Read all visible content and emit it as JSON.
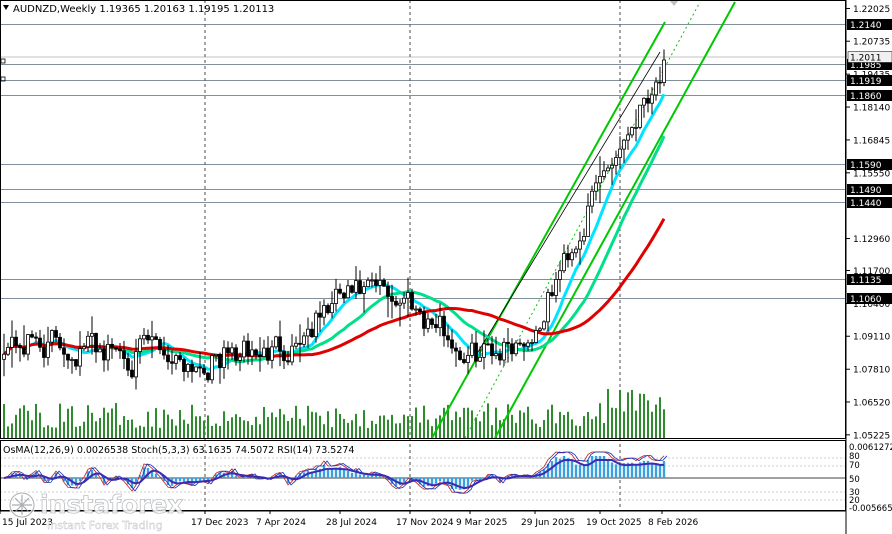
{
  "window": {
    "symbol_line": "AUDNZD,Weekly  1.19365 1.20163 1.19195 1.20113"
  },
  "colors": {
    "background": "#ffffff",
    "candles": "#000000",
    "ma_fast": "#00e5ff",
    "ma_mid": "#00e08a",
    "ma_slow": "#e00000",
    "channel": "#00c800",
    "volume": "#2e8b2e",
    "osma": "#3aa0e0",
    "stoch_main": "#1030c0",
    "stoch_signal": "#c02020",
    "rsi": "#3b2bb0",
    "price_tag_bg": "#000000",
    "price_tag_text": "#ffffff",
    "current_price_tag_bg": "#f0f0f0"
  },
  "levels": [
    {
      "label": "1.2140",
      "value": 1.214,
      "tag": true
    },
    {
      "label": "1.1985",
      "value": 1.1985,
      "tag": true
    },
    {
      "label": "1.1919",
      "value": 1.1919,
      "tag": true
    },
    {
      "label": "1.1860",
      "value": 1.186,
      "tag": true
    },
    {
      "label": "1.1590",
      "value": 1.159,
      "tag": true
    },
    {
      "label": "1.1490",
      "value": 1.149,
      "tag": true
    },
    {
      "label": "1.1440",
      "value": 1.144,
      "tag": true
    },
    {
      "label": "1.1135",
      "value": 1.1135,
      "tag": true
    },
    {
      "label": "1.1060",
      "value": 1.106,
      "tag": true
    }
  ],
  "current_price": {
    "label": "1.2011",
    "value": 1.20113
  },
  "price_axis": {
    "ticks": [
      "1.22025",
      "1.20735",
      "1.19435",
      "1.18140",
      "1.16845",
      "1.15550",
      "1.12960",
      "1.11700",
      "1.10400",
      "1.09110",
      "1.07810",
      "1.06520",
      "1.05225"
    ],
    "range": [
      1.051,
      1.2228
    ]
  },
  "date_axis": [
    "15 Jul 2023",
    "17 Dec 2023",
    "7 Apr 2024",
    "28 Jul 2024",
    "17 Nov 2024",
    "9 Mar 2025",
    "29 Jun 2025",
    "19 Oct 2025",
    "8 Feb 2026"
  ],
  "indicators": {
    "header": "OsMA(12,26,9) 0.0026538  Stoch(5,3,3) 63.1635 74.5072  RSI(14) 73.5274",
    "axis": [
      "0.0061272",
      "80",
      "70",
      "50",
      "30",
      "20",
      "0.00",
      "-0.0056655"
    ]
  },
  "watermark": {
    "brand": "instaforex",
    "tagline": "Instant Forex Trading"
  },
  "chart_data": {
    "type": "candlestick",
    "symbol": "AUDNZD",
    "timeframe": "Weekly",
    "ohlc_last": {
      "open": 1.19365,
      "high": 1.20163,
      "low": 1.19195,
      "close": 1.20113
    },
    "overlays": [
      "MA (cyan)",
      "MA (green)",
      "MA (red)",
      "ascending price channel (green)"
    ],
    "key_points": [
      {
        "date": "15 Jul 2023",
        "price": 1.09
      },
      {
        "date": "17 Dec 2023",
        "price": 1.083
      },
      {
        "date": "7 Apr 2024",
        "price": 1.084
      },
      {
        "date": "28 Jul 2024",
        "price": 1.105
      },
      {
        "date": "17 Nov 2024",
        "price": 1.107
      },
      {
        "date": "9 Mar 2025",
        "price": 1.083
      },
      {
        "date": "29 Jun 2025",
        "price": 1.094
      },
      {
        "date": "19 Oct 2025",
        "price": 1.152
      },
      {
        "date": "8 Feb 2026",
        "price": 1.19
      },
      {
        "date": "latest",
        "price": 1.2011
      }
    ],
    "oscillators": {
      "osma": 0.0026538,
      "stoch_main": 63.1635,
      "stoch_signal": 74.5072,
      "rsi": 73.5274
    }
  }
}
